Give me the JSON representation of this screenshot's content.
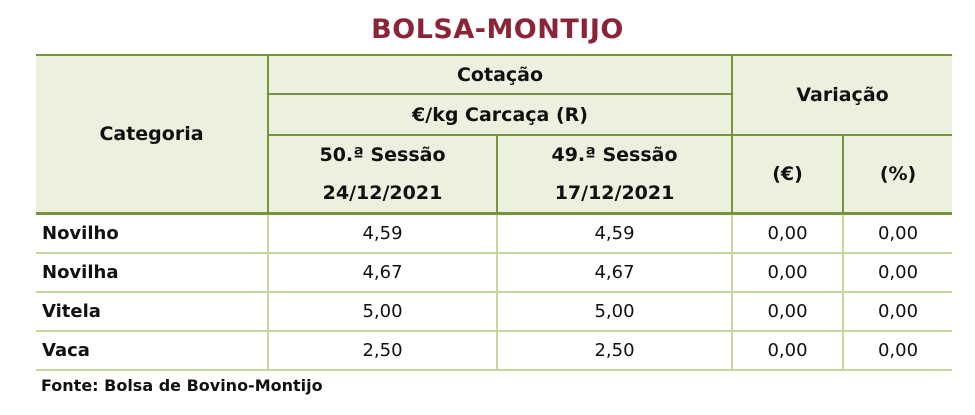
{
  "title": "BOLSA-MONTIJO",
  "header": {
    "categoria": "Categoria",
    "cotacao": "Cotação",
    "unit": "€/kg Carcaça (R)",
    "variacao": "Variação",
    "session_current": "50.ª Sessão",
    "date_current": "24/12/2021",
    "session_previous": "49.ª Sessão",
    "date_previous": "17/12/2021",
    "var_eur": "(€)",
    "var_pct": "(%)"
  },
  "rows": [
    {
      "categoria": "Novilho",
      "current": "4,59",
      "previous": "4,59",
      "var_eur": "0,00",
      "var_pct": "0,00"
    },
    {
      "categoria": "Novilha",
      "current": "4,67",
      "previous": "4,67",
      "var_eur": "0,00",
      "var_pct": "0,00"
    },
    {
      "categoria": "Vitela",
      "current": "5,00",
      "previous": "5,00",
      "var_eur": "0,00",
      "var_pct": "0,00"
    },
    {
      "categoria": "Vaca",
      "current": "2,50",
      "previous": "2,50",
      "var_eur": "0,00",
      "var_pct": "0,00"
    }
  ],
  "footer": "Fonte: Bolsa de Bovino-Montijo",
  "colors": {
    "title": "#8c2438",
    "header_bg": "#ebf1de",
    "header_border": "#77933c",
    "body_border": "#c4d79b"
  }
}
